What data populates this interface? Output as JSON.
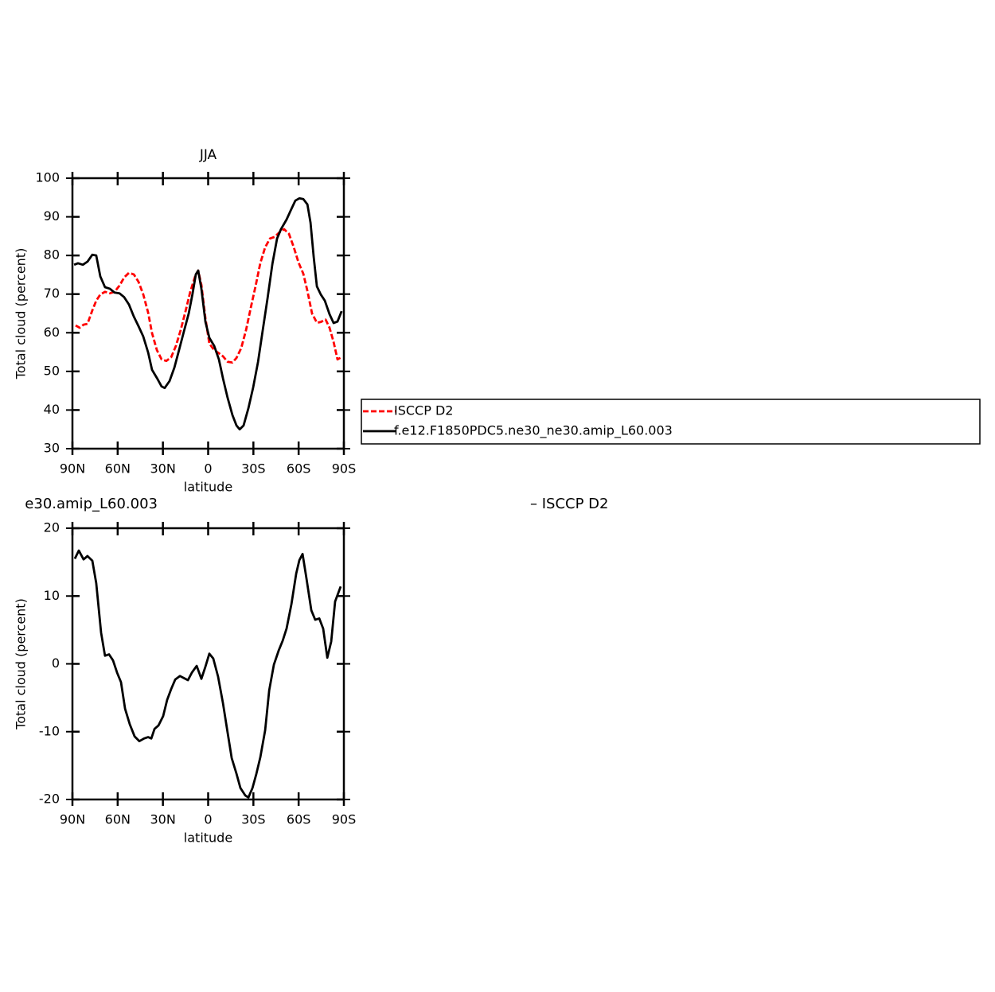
{
  "chart_data": [
    {
      "type": "line",
      "title": "JJA",
      "xlabel": "latitude",
      "ylabel": "Total cloud (percent)",
      "xlim": [
        90,
        -90
      ],
      "ylim": [
        30,
        100
      ],
      "xticks": [
        {
          "value": 90,
          "label": "90N"
        },
        {
          "value": 60,
          "label": "60N"
        },
        {
          "value": 30,
          "label": "30N"
        },
        0,
        {
          "value": -30,
          "label": "30S"
        },
        {
          "value": -60,
          "label": "60S"
        },
        {
          "value": -90,
          "label": "90S"
        }
      ],
      "yticks": [
        30,
        40,
        50,
        60,
        70,
        80,
        90,
        100
      ],
      "legend": "right",
      "series": [
        {
          "name": "ISCCP D2",
          "color": "#ff0000",
          "dashed": true,
          "x": [
            87.9,
            85.2,
            82.6,
            80.0,
            76.8,
            74.2,
            71.5,
            68.4,
            65.2,
            62.0,
            58.8,
            55.7,
            52.5,
            49.3,
            46.2,
            43.0,
            39.8,
            37.2,
            34.0,
            30.9,
            27.7,
            24.5,
            21.4,
            18.2,
            15.0,
            11.9,
            8.7,
            6.6,
            4.5,
            1.8,
            -0.8,
            -4.0,
            -7.1,
            -9.8,
            -12.9,
            -16.1,
            -18.8,
            -21.9,
            -25.1,
            -28.3,
            -31.5,
            -34.6,
            -37.8,
            -41.0,
            -44.1,
            -47.3,
            -50.4,
            -53.6,
            -56.8,
            -59.9,
            -63.1,
            -65.8,
            -68.9,
            -72.1,
            -74.7,
            -77.9,
            -80.5,
            -83.2,
            -85.8,
            -88.5
          ],
          "values": [
            61.9,
            61.3,
            62.1,
            62.3,
            65.8,
            68.3,
            69.9,
            70.6,
            70.2,
            70.6,
            72.2,
            74.3,
            75.5,
            75.1,
            73.2,
            69.9,
            65.2,
            59.9,
            55.5,
            53.1,
            52.7,
            53.7,
            56.6,
            60.7,
            65.6,
            70.6,
            74.5,
            76.1,
            72.4,
            63.7,
            57.2,
            55.5,
            54.7,
            53.9,
            52.5,
            52.3,
            53.5,
            56.0,
            60.7,
            66.5,
            72.2,
            78.0,
            82.1,
            84.4,
            84.8,
            86.0,
            86.8,
            85.6,
            82.1,
            78.2,
            75.3,
            70.8,
            65.0,
            62.6,
            62.8,
            63.4,
            61.3,
            57.6,
            53.1,
            53.7
          ]
        },
        {
          "name": "f.e12.F1850PDC5.ne30_ne30.amip_L60.003",
          "color": "#000000",
          "dashed": false,
          "x": [
            88.9,
            86.3,
            83.1,
            80.0,
            76.8,
            74.2,
            71.5,
            68.4,
            65.2,
            62.0,
            58.8,
            55.7,
            52.5,
            49.3,
            46.2,
            43.0,
            39.8,
            37.2,
            34.0,
            30.9,
            28.8,
            25.6,
            22.4,
            19.3,
            16.1,
            12.9,
            10.3,
            8.2,
            6.6,
            4.5,
            1.8,
            -0.8,
            -4.0,
            -7.1,
            -9.8,
            -12.9,
            -16.1,
            -18.8,
            -20.9,
            -23.5,
            -26.7,
            -29.9,
            -33.1,
            -36.2,
            -39.4,
            -42.6,
            -45.7,
            -48.3,
            -52.0,
            -54.7,
            -57.8,
            -60.5,
            -63.1,
            -65.8,
            -67.9,
            -70.0,
            -72.1,
            -74.7,
            -77.4,
            -80.5,
            -83.2,
            -85.8,
            -88.5
          ],
          "values": [
            77.6,
            78.0,
            77.6,
            78.4,
            80.2,
            80.0,
            74.6,
            71.8,
            71.4,
            70.4,
            70.2,
            69.2,
            67.3,
            64.2,
            61.7,
            59.0,
            54.9,
            50.4,
            48.3,
            46.1,
            45.7,
            47.5,
            51.0,
            55.5,
            60.3,
            65.0,
            70.2,
            75.1,
            76.1,
            71.4,
            62.8,
            58.7,
            56.6,
            53.1,
            48.2,
            43.2,
            38.7,
            36.0,
            35.0,
            36.0,
            40.5,
            45.9,
            52.5,
            60.7,
            68.9,
            77.8,
            84.4,
            86.8,
            89.3,
            91.6,
            94.2,
            94.8,
            94.6,
            93.2,
            88.5,
            79.6,
            72.0,
            69.9,
            68.3,
            64.8,
            62.5,
            62.9,
            65.6
          ]
        }
      ]
    },
    {
      "type": "line",
      "title_fragments": [
        "e30.amip_L60.003",
        "– ISCCP D2"
      ],
      "xlabel": "latitude",
      "ylabel": "Total cloud (percent)",
      "xlim": [
        90,
        -90
      ],
      "ylim": [
        -20,
        20
      ],
      "xticks": [
        {
          "value": 90,
          "label": "90N"
        },
        {
          "value": 60,
          "label": "60N"
        },
        {
          "value": 30,
          "label": "30N"
        },
        0,
        {
          "value": -30,
          "label": "30S"
        },
        {
          "value": -60,
          "label": "60S"
        },
        {
          "value": -90,
          "label": "90S"
        }
      ],
      "yticks": [
        -20,
        -10,
        0,
        10,
        20
      ],
      "series": [
        {
          "color": "#000000",
          "dashed": false,
          "x": [
            88.4,
            85.8,
            82.6,
            80.0,
            76.8,
            74.2,
            71.0,
            68.4,
            65.7,
            63.1,
            60.4,
            57.8,
            55.1,
            52.0,
            48.8,
            45.6,
            42.5,
            39.8,
            37.7,
            35.6,
            33.0,
            29.8,
            27.2,
            24.5,
            21.8,
            18.7,
            16.1,
            13.4,
            10.8,
            7.6,
            4.5,
            1.8,
            -0.8,
            -3.4,
            -6.6,
            -9.8,
            -12.9,
            -15.6,
            -18.8,
            -21.4,
            -24.6,
            -26.7,
            -29.4,
            -32.0,
            -34.6,
            -37.8,
            -40.5,
            -43.6,
            -46.8,
            -49.4,
            -52.0,
            -55.2,
            -58.4,
            -60.5,
            -62.6,
            -65.2,
            -68.4,
            -71.0,
            -73.7,
            -76.3,
            -79.0,
            -81.6,
            -84.2,
            -87.9
          ],
          "values": [
            15.5,
            16.7,
            15.4,
            15.9,
            15.2,
            11.9,
            4.6,
            1.2,
            1.4,
            0.5,
            -1.3,
            -2.7,
            -6.6,
            -8.9,
            -10.7,
            -11.4,
            -11.0,
            -10.8,
            -11.0,
            -9.6,
            -9.1,
            -7.7,
            -5.3,
            -3.7,
            -2.3,
            -1.8,
            -2.1,
            -2.4,
            -1.3,
            -0.3,
            -2.2,
            -0.4,
            1.5,
            0.8,
            -1.9,
            -5.8,
            -10.1,
            -13.9,
            -16.2,
            -18.3,
            -19.4,
            -19.7,
            -18.3,
            -16.2,
            -13.8,
            -9.8,
            -3.9,
            -0.1,
            2.0,
            3.4,
            5.2,
            8.8,
            13.3,
            15.3,
            16.2,
            12.6,
            7.9,
            6.5,
            6.7,
            5.2,
            0.9,
            3.3,
            9.2,
            11.4
          ]
        }
      ]
    }
  ]
}
